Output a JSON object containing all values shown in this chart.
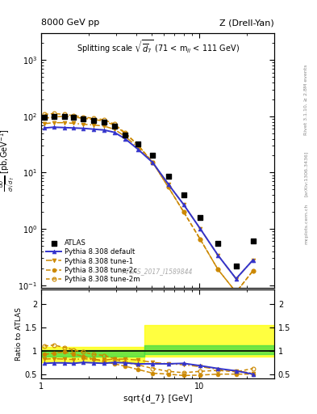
{
  "title_left": "8000 GeV pp",
  "title_right": "Z (Drell-Yan)",
  "plot_title": "Splitting scale $\\sqrt{\\overline{d}_7}$ (71 < m$_{ll}$ < 111 GeV)",
  "xlabel": "sqrt{d_7} [GeV]",
  "ylabel_ratio": "Ratio to ATLAS",
  "watermark": "ATLAS_2017_I1589844",
  "rivet_text": "Rivet 3.1.10, ≥ 2.8M events",
  "arxiv_text": "[arXiv:1306.3436]",
  "mcplots_text": "mcplots.cern.ch",
  "xlim": [
    1.0,
    30.0
  ],
  "ylim_main": [
    0.09,
    3000.0
  ],
  "ylim_ratio": [
    0.4,
    2.3
  ],
  "atlas_x": [
    1.05,
    1.2,
    1.4,
    1.6,
    1.85,
    2.15,
    2.5,
    2.9,
    3.4,
    4.1,
    5.1,
    6.4,
    8.0,
    10.2,
    13.2,
    17.2,
    22.0
  ],
  "atlas_y": [
    95,
    100,
    98,
    95,
    90,
    85,
    80,
    67,
    47,
    32,
    20,
    8.5,
    4.0,
    1.6,
    0.55,
    0.22,
    0.6
  ],
  "pythia_default_x": [
    1.05,
    1.2,
    1.4,
    1.6,
    1.85,
    2.15,
    2.5,
    2.9,
    3.4,
    4.1,
    5.1,
    6.4,
    8.0,
    10.2,
    13.2,
    17.2,
    22.0
  ],
  "pythia_default_y": [
    62,
    64,
    63,
    62,
    61,
    59,
    57,
    52,
    40,
    26,
    15,
    6.2,
    2.7,
    1.0,
    0.34,
    0.13,
    0.28
  ],
  "tune1_x": [
    1.05,
    1.2,
    1.4,
    1.6,
    1.85,
    2.15,
    2.5,
    2.9,
    3.4,
    4.1,
    5.1,
    6.4,
    8.0,
    10.2,
    13.2,
    17.2,
    22.0
  ],
  "tune1_y": [
    74,
    77,
    77,
    75,
    72,
    70,
    67,
    59,
    44,
    28,
    15,
    6.2,
    2.7,
    1.0,
    0.34,
    0.13,
    0.28
  ],
  "tune2c_x": [
    1.05,
    1.2,
    1.4,
    1.6,
    1.85,
    2.15,
    2.5,
    2.9,
    3.4,
    4.1,
    5.1,
    6.4,
    8.0,
    10.2,
    13.2,
    17.2,
    22.0
  ],
  "tune2c_y": [
    92,
    97,
    100,
    97,
    92,
    88,
    82,
    70,
    50,
    31,
    15,
    5.5,
    2.0,
    0.65,
    0.19,
    0.075,
    0.18
  ],
  "tune2m_x": [
    1.05,
    1.2,
    1.4,
    1.6,
    1.85,
    2.15,
    2.5,
    2.9,
    3.4,
    4.1,
    5.1,
    6.4,
    8.0,
    10.2,
    13.2,
    17.2,
    22.0
  ],
  "tune2m_y": [
    108,
    112,
    108,
    103,
    97,
    92,
    87,
    73,
    51,
    31,
    15,
    5.5,
    2.0,
    0.65,
    0.19,
    0.075,
    0.18
  ],
  "ratio_default": [
    0.73,
    0.74,
    0.74,
    0.73,
    0.75,
    0.74,
    0.73,
    0.75,
    0.74,
    0.72,
    0.72,
    0.72,
    0.73,
    0.68,
    0.62,
    0.57,
    0.5
  ],
  "ratio_tune1": [
    0.82,
    0.83,
    0.82,
    0.81,
    0.83,
    0.81,
    0.8,
    0.82,
    0.82,
    0.8,
    0.75,
    0.72,
    0.7,
    0.66,
    0.6,
    0.57,
    0.52
  ],
  "ratio_tune2c": [
    0.92,
    0.95,
    0.97,
    0.93,
    0.88,
    0.82,
    0.77,
    0.72,
    0.67,
    0.6,
    0.52,
    0.5,
    0.47,
    0.48,
    0.5,
    0.5,
    0.5
  ],
  "ratio_tune2m": [
    1.1,
    1.12,
    1.07,
    1.02,
    0.97,
    0.92,
    0.9,
    0.83,
    0.75,
    0.7,
    0.62,
    0.56,
    0.53,
    0.56,
    0.58,
    0.55,
    0.62
  ],
  "band_x1_lo": 1.0,
  "band_x1_hi": 4.5,
  "band_x2_lo": 4.5,
  "band_x2_hi": 30.0,
  "band1_yellow_lo": 0.75,
  "band1_yellow_hi": 1.08,
  "band2_yellow_lo": 0.88,
  "band2_yellow_hi": 1.55,
  "band1_green_lo": 0.88,
  "band1_green_hi": 1.02,
  "band2_green_lo": 0.93,
  "band2_green_hi": 1.12,
  "color_default": "#3333cc",
  "color_tune1": "#cc8800",
  "color_tune2c": "#cc8800",
  "color_tune2m": "#cc8800",
  "color_atlas": "black"
}
